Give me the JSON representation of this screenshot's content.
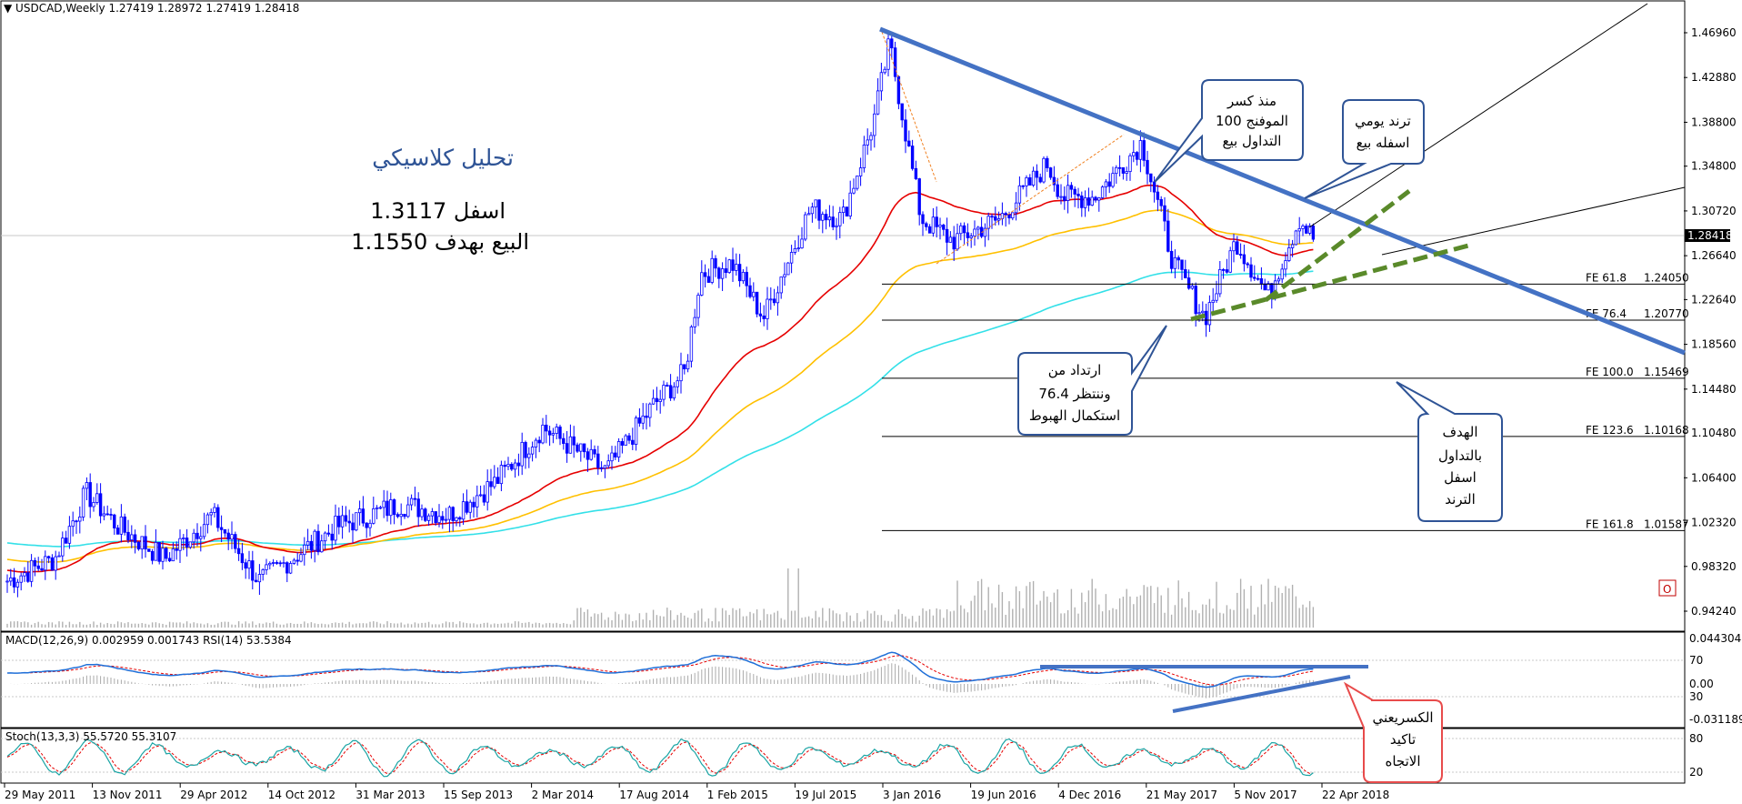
{
  "header": {
    "main_label": "USDCAD,Weekly  1.27419 1.28972 1.27419 1.28418",
    "macd_label": "MACD(12,26,9) 0.002959 0.001743  RSI(14) 53.5384",
    "stoch_label": "Stoch(13,3,3) 55.5720 55.3107"
  },
  "annotations": {
    "title": "تحليل كلاسيكي",
    "line1": "اسفل 1.3117",
    "line2": "البيع بهدف 1.1550",
    "callout_top": [
      "منذ كسر",
      "الموفنج 100",
      "التداول بيع"
    ],
    "callout_trend": [
      "ترند يومي",
      "اسفله بيع"
    ],
    "callout_mid": [
      "ارتداد من",
      "76.4 وننتظر",
      "استكمال الهبوط"
    ],
    "callout_target": [
      "الهدف",
      "بالتداول",
      "اسفل",
      "الترند"
    ],
    "callout_break": [
      "الكسريعني",
      "تاكيد",
      "الاتجاه"
    ],
    "o_marker": "O"
  },
  "colors": {
    "candle": "#0000ff",
    "ma_red": "#e60000",
    "ma_yellow": "#ffc000",
    "ma_cyan": "#33e0e8",
    "trend_blue": "#4472c4",
    "trend_green": "#5a8a2a",
    "callout_border": "#2f5496",
    "callout_red_border": "#e84b4b",
    "macd_line": "#1f6fd8",
    "signal_line": "#e60000",
    "stoch_main": "#1aa5a5",
    "stoch_signal": "#e60000"
  },
  "chart_data": {
    "type": "line",
    "symbol": "USDCAD",
    "timeframe": "Weekly",
    "ohlc": {
      "open": 1.27419,
      "high": 1.28972,
      "low": 1.27419,
      "close": 1.28418
    },
    "current_price": "1.28418",
    "y_ticks": [
      "1.46960",
      "1.42880",
      "1.38800",
      "1.34800",
      "1.30720",
      "1.26640",
      "1.22640",
      "1.18560",
      "1.14480",
      "1.10480",
      "1.06400",
      "1.02320",
      "0.98320",
      "0.94240"
    ],
    "x_ticks": [
      "29 May 2011",
      "13 Nov 2011",
      "29 Apr 2012",
      "14 Oct 2012",
      "31 Mar 2013",
      "15 Sep 2013",
      "2 Mar 2014",
      "17 Aug 2014",
      "1 Feb 2015",
      "19 Jul 2015",
      "3 Jan 2016",
      "19 Jun 2016",
      "4 Dec 2016",
      "21 May 2017",
      "5 Nov 2017",
      "22 Apr 2018"
    ],
    "fib_levels": [
      {
        "label": "FE 61.8",
        "value": "1.24050"
      },
      {
        "label": "FE 76.4",
        "value": "1.20770"
      },
      {
        "label": "FE 100.0",
        "value": "1.15469"
      },
      {
        "label": "FE 123.6",
        "value": "1.10168"
      },
      {
        "label": "FE 161.8",
        "value": "1.01587"
      }
    ],
    "price_series": [
      [
        "2011-05",
        0.97
      ],
      [
        "2011-08",
        0.99
      ],
      [
        "2011-10",
        1.05
      ],
      [
        "2011-12",
        1.02
      ],
      [
        "2012-03",
        0.99
      ],
      [
        "2012-06",
        1.03
      ],
      [
        "2012-09",
        0.97
      ],
      [
        "2012-11",
        0.99
      ],
      [
        "2013-02",
        1.02
      ],
      [
        "2013-06",
        1.04
      ],
      [
        "2013-09",
        1.03
      ],
      [
        "2013-12",
        1.06
      ],
      [
        "2014-03",
        1.11
      ],
      [
        "2014-07",
        1.07
      ],
      [
        "2014-10",
        1.13
      ],
      [
        "2014-12",
        1.16
      ],
      [
        "2015-01",
        1.25
      ],
      [
        "2015-03",
        1.26
      ],
      [
        "2015-05",
        1.21
      ],
      [
        "2015-08",
        1.31
      ],
      [
        "2015-10",
        1.3
      ],
      [
        "2015-12",
        1.39
      ],
      [
        "2016-01",
        1.46
      ],
      [
        "2016-03",
        1.3
      ],
      [
        "2016-05",
        1.28
      ],
      [
        "2016-08",
        1.3
      ],
      [
        "2016-11",
        1.35
      ],
      [
        "2016-12",
        1.32
      ],
      [
        "2017-02",
        1.32
      ],
      [
        "2017-05",
        1.37
      ],
      [
        "2017-07",
        1.26
      ],
      [
        "2017-09",
        1.21
      ],
      [
        "2017-11",
        1.28
      ],
      [
        "2018-01",
        1.23
      ],
      [
        "2018-03",
        1.3
      ],
      [
        "2018-04",
        1.28
      ]
    ],
    "macd_axis": [
      "0.044304",
      "70",
      "30",
      "0.00",
      "-0.031189"
    ],
    "stoch_axis": [
      "80",
      "20"
    ]
  }
}
